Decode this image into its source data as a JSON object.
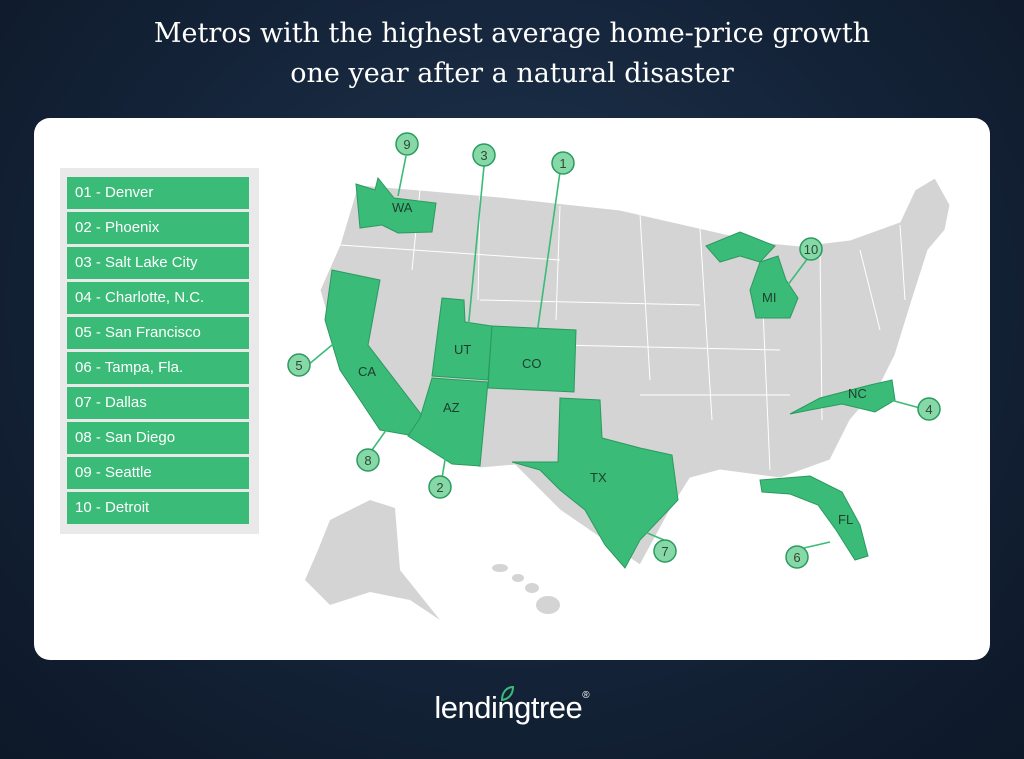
{
  "title": {
    "line1": "Metros with the highest average home-price growth",
    "line2": "one year after a natural disaster"
  },
  "legend": [
    "01 - Denver",
    "02 - Phoenix",
    "03 - Salt Lake City",
    "04 - Charlotte, N.C.",
    "05 - San Francisco",
    "06 - Tampa, Fla.",
    "07 - Dallas",
    "08 - San Diego",
    "09 - Seattle",
    "10 - Detroit"
  ],
  "states": {
    "wa": "WA",
    "ca": "CA",
    "ut": "UT",
    "co": "CO",
    "az": "AZ",
    "tx": "TX",
    "mi": "MI",
    "nc": "NC",
    "fl": "FL"
  },
  "markers": [
    "1",
    "2",
    "3",
    "4",
    "5",
    "6",
    "7",
    "8",
    "9",
    "10"
  ],
  "colors": {
    "highlight": "#3bbb78",
    "marker_fill": "#86d9a6",
    "state_gray": "#d4d4d4",
    "background": "#142338"
  },
  "brand": {
    "name": "lendingtree",
    "mark": "®",
    "icon": "leaf-icon"
  }
}
